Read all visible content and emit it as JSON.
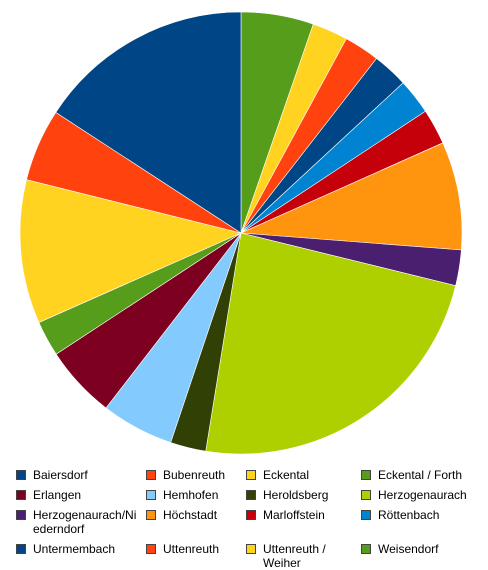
{
  "chart_data": {
    "type": "pie",
    "title": "",
    "series": [
      {
        "name": "Weisendorf",
        "value": 5.3,
        "color": "#579d1c"
      },
      {
        "name": "Uttenreuth / Weiher",
        "value": 2.6,
        "color": "#ffd320"
      },
      {
        "name": "Uttenreuth",
        "value": 2.6,
        "color": "#ff420e"
      },
      {
        "name": "Untermembach",
        "value": 2.6,
        "color": "#004586"
      },
      {
        "name": "Röttenbach",
        "value": 2.6,
        "color": "#0084d1"
      },
      {
        "name": "Marloffstein",
        "value": 2.6,
        "color": "#c5000b"
      },
      {
        "name": "Höchstadt",
        "value": 7.9,
        "color": "#ff950e"
      },
      {
        "name": "Herzogenaurach/Niederndorf",
        "value": 2.6,
        "color": "#4b1f6f"
      },
      {
        "name": "Herzogenaurach",
        "value": 23.7,
        "color": "#aecf00"
      },
      {
        "name": "Heroldsberg",
        "value": 2.6,
        "color": "#314004"
      },
      {
        "name": "Hemhofen",
        "value": 5.3,
        "color": "#83caff"
      },
      {
        "name": "Erlangen",
        "value": 5.3,
        "color": "#7e0021"
      },
      {
        "name": "Eckental / Forth",
        "value": 2.6,
        "color": "#579d1c"
      },
      {
        "name": "Eckental",
        "value": 10.5,
        "color": "#ffd320"
      },
      {
        "name": "Bubenreuth",
        "value": 5.3,
        "color": "#ff420e"
      },
      {
        "name": "Baiersdorf",
        "value": 15.8,
        "color": "#004586"
      }
    ],
    "legend_position": "bottom"
  },
  "legend": {
    "rows": [
      [
        {
          "label": "Baiersdorf",
          "color": "#004586"
        },
        {
          "label": "Bubenreuth",
          "color": "#ff420e"
        },
        {
          "label": "Eckental",
          "color": "#ffd320"
        },
        {
          "label": "Eckental / Forth",
          "color": "#579d1c"
        }
      ],
      [
        {
          "label": "Erlangen",
          "color": "#7e0021"
        },
        {
          "label": "Hemhofen",
          "color": "#83caff"
        },
        {
          "label": "Heroldsberg",
          "color": "#314004"
        },
        {
          "label": "Herzogenaurach",
          "color": "#aecf00"
        }
      ],
      [
        {
          "label": "Herzogenaurach/Niederndorf",
          "color": "#4b1f6f"
        },
        {
          "label": "Höchstadt",
          "color": "#ff950e"
        },
        {
          "label": "Marloffstein",
          "color": "#c5000b"
        },
        {
          "label": "Röttenbach",
          "color": "#0084d1"
        }
      ],
      [
        {
          "label": "Untermembach",
          "color": "#004586"
        },
        {
          "label": "Uttenreuth",
          "color": "#ff420e"
        },
        {
          "label": "Uttenreuth / Weiher",
          "color": "#ffd320"
        },
        {
          "label": "Weisendorf",
          "color": "#579d1c"
        }
      ]
    ]
  }
}
